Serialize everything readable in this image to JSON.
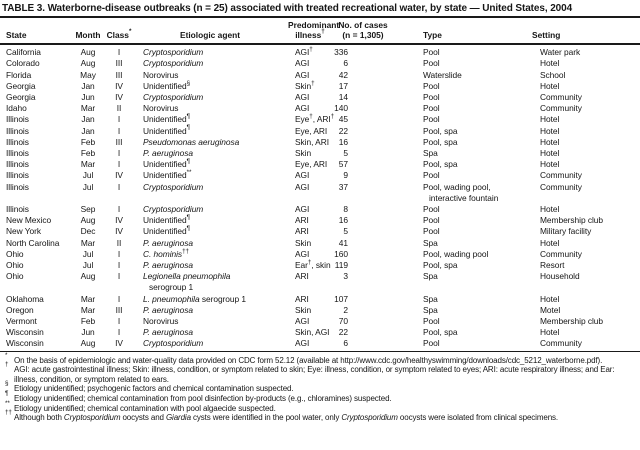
{
  "title": "TABLE 3. Waterborne-disease outbreaks (n = 25) associated with treated recreational water, by state — United States, 2004",
  "columns": {
    "state": "State",
    "month": "Month",
    "class_label": "Class",
    "class_sup": "*",
    "agent": "Etiologic agent",
    "illness_line1": "Predominant",
    "illness_line2": "illness",
    "illness_sup": "†",
    "cases_line1": "No. of cases",
    "cases_line2": "(n = 1,305)",
    "type": "Type",
    "setting": "Setting"
  },
  "rows": [
    {
      "state": "California",
      "month": "Aug",
      "cls": "I",
      "agent": [
        {
          "t": "Cryptosporidium",
          "i": true
        }
      ],
      "illness": [
        {
          "t": "AGI"
        },
        {
          "sup": "†"
        }
      ],
      "cases": "336",
      "type": "Pool",
      "setting": "Water park"
    },
    {
      "state": "Colorado",
      "month": "Aug",
      "cls": "III",
      "agent": [
        {
          "t": "Cryptosporidium",
          "i": true
        }
      ],
      "illness": [
        {
          "t": "AGI"
        }
      ],
      "cases": "6",
      "type": "Pool",
      "setting": "Hotel"
    },
    {
      "state": "Florida",
      "month": "May",
      "cls": "III",
      "agent": [
        {
          "t": "Norovirus"
        }
      ],
      "illness": [
        {
          "t": "AGI"
        }
      ],
      "cases": "42",
      "type": "Waterslide",
      "setting": "School"
    },
    {
      "state": "Georgia",
      "month": "Jan",
      "cls": "IV",
      "agent": [
        {
          "t": "Unidentified"
        },
        {
          "sup": "§"
        }
      ],
      "illness": [
        {
          "t": "Skin"
        },
        {
          "sup": "†"
        }
      ],
      "cases": "17",
      "type": "Pool",
      "setting": "Hotel"
    },
    {
      "state": "Georgia",
      "month": "Jun",
      "cls": "IV",
      "agent": [
        {
          "t": "Cryptosporidium",
          "i": true
        }
      ],
      "illness": [
        {
          "t": "AGI"
        }
      ],
      "cases": "14",
      "type": "Pool",
      "setting": "Community"
    },
    {
      "state": "Idaho",
      "month": "Mar",
      "cls": "II",
      "agent": [
        {
          "t": "Norovirus"
        }
      ],
      "illness": [
        {
          "t": "AGI"
        }
      ],
      "cases": "140",
      "type": "Pool",
      "setting": "Community"
    },
    {
      "state": "Illinois",
      "month": "Jan",
      "cls": "I",
      "agent": [
        {
          "t": "Unidentified"
        },
        {
          "sup": "¶"
        }
      ],
      "illness": [
        {
          "t": "Eye"
        },
        {
          "sup": "†"
        },
        {
          "t": ", ARI"
        },
        {
          "sup": "†"
        }
      ],
      "cases": "45",
      "type": "Pool",
      "setting": "Hotel"
    },
    {
      "state": "Illinois",
      "month": "Jan",
      "cls": "I",
      "agent": [
        {
          "t": "Unidentified"
        },
        {
          "sup": "¶"
        }
      ],
      "illness": [
        {
          "t": "Eye, ARI"
        }
      ],
      "cases": "22",
      "type": "Pool, spa",
      "setting": "Hotel"
    },
    {
      "state": "Illinois",
      "month": "Feb",
      "cls": "III",
      "agent": [
        {
          "t": "Pseudomonas aeruginosa",
          "i": true
        }
      ],
      "illness": [
        {
          "t": "Skin, ARI"
        }
      ],
      "cases": "16",
      "type": "Pool, spa",
      "setting": "Hotel"
    },
    {
      "state": "Illinois",
      "month": "Feb",
      "cls": "I",
      "agent": [
        {
          "t": "P. aeruginosa",
          "i": true
        }
      ],
      "illness": [
        {
          "t": "Skin"
        }
      ],
      "cases": "5",
      "type": "Spa",
      "setting": "Hotel"
    },
    {
      "state": "Illinois",
      "month": "Mar",
      "cls": "I",
      "agent": [
        {
          "t": "Unidentified"
        },
        {
          "sup": "¶"
        }
      ],
      "illness": [
        {
          "t": "Eye, ARI"
        }
      ],
      "cases": "57",
      "type": "Pool, spa",
      "setting": "Hotel"
    },
    {
      "state": "Illinois",
      "month": "Jul",
      "cls": "IV",
      "agent": [
        {
          "t": "Unidentified"
        },
        {
          "sup": "**"
        }
      ],
      "illness": [
        {
          "t": "AGI"
        }
      ],
      "cases": "9",
      "type": "Pool",
      "setting": "Community"
    },
    {
      "state": "Illinois",
      "month": "Jul",
      "cls": "I",
      "agent": [
        {
          "t": "Cryptosporidium",
          "i": true
        }
      ],
      "illness": [
        {
          "t": "AGI"
        }
      ],
      "cases": "37",
      "type": "Pool, wading pool,",
      "type2": "interactive fountain",
      "setting": "Community"
    },
    {
      "state": "Illinois",
      "month": "Sep",
      "cls": "I",
      "agent": [
        {
          "t": "Cryptosporidium",
          "i": true
        }
      ],
      "illness": [
        {
          "t": "AGI"
        }
      ],
      "cases": "8",
      "type": "Pool",
      "setting": "Hotel"
    },
    {
      "state": "New Mexico",
      "month": "Aug",
      "cls": "IV",
      "agent": [
        {
          "t": "Unidentified"
        },
        {
          "sup": "¶"
        }
      ],
      "illness": [
        {
          "t": "ARI"
        }
      ],
      "cases": "16",
      "type": "Pool",
      "setting": "Membership club"
    },
    {
      "state": "New York",
      "month": "Dec",
      "cls": "IV",
      "agent": [
        {
          "t": "Unidentified"
        },
        {
          "sup": "¶"
        }
      ],
      "illness": [
        {
          "t": "ARI"
        }
      ],
      "cases": "5",
      "type": "Pool",
      "setting": "Military facility"
    },
    {
      "state": "North Carolina",
      "month": "Mar",
      "cls": "II",
      "agent": [
        {
          "t": "P. aeruginosa",
          "i": true
        }
      ],
      "illness": [
        {
          "t": "Skin"
        }
      ],
      "cases": "41",
      "type": "Spa",
      "setting": "Hotel"
    },
    {
      "state": "Ohio",
      "month": "Jul",
      "cls": "I",
      "agent": [
        {
          "t": "C. hominis",
          "i": true
        },
        {
          "sup": "††"
        }
      ],
      "illness": [
        {
          "t": "AGI"
        }
      ],
      "cases": "160",
      "type": "Pool, wading pool",
      "setting": "Community"
    },
    {
      "state": "Ohio",
      "month": "Jul",
      "cls": "I",
      "agent": [
        {
          "t": "P. aeruginosa",
          "i": true
        }
      ],
      "illness": [
        {
          "t": "Ear"
        },
        {
          "sup": "†"
        },
        {
          "t": ", skin"
        }
      ],
      "cases": "119",
      "type": "Pool, spa",
      "setting": "Resort"
    },
    {
      "state": "Ohio",
      "month": "Aug",
      "cls": "I",
      "agent": [
        {
          "t": "Legionella pneumophila",
          "i": true
        }
      ],
      "agent2": "serogroup 1",
      "illness": [
        {
          "t": "ARI"
        }
      ],
      "cases": "3",
      "type": "Spa",
      "setting": "Household"
    },
    {
      "state": "Oklahoma",
      "month": "Mar",
      "cls": "I",
      "agent": [
        {
          "t": "L. pneumophila",
          "i": true
        },
        {
          "t": " serogroup 1"
        }
      ],
      "illness": [
        {
          "t": "ARI"
        }
      ],
      "cases": "107",
      "type": "Spa",
      "setting": "Hotel"
    },
    {
      "state": "Oregon",
      "month": "Mar",
      "cls": "III",
      "agent": [
        {
          "t": "P. aeruginosa",
          "i": true
        }
      ],
      "illness": [
        {
          "t": "Skin"
        }
      ],
      "cases": "2",
      "type": "Spa",
      "setting": "Motel"
    },
    {
      "state": "Vermont",
      "month": "Feb",
      "cls": "I",
      "agent": [
        {
          "t": "Norovirus"
        }
      ],
      "illness": [
        {
          "t": "AGI"
        }
      ],
      "cases": "70",
      "type": "Pool",
      "setting": "Membership club"
    },
    {
      "state": "Wisconsin",
      "month": "Jun",
      "cls": "I",
      "agent": [
        {
          "t": "P. aeruginosa",
          "i": true
        }
      ],
      "illness": [
        {
          "t": "Skin, AGI"
        }
      ],
      "cases": "22",
      "type": "Pool, spa",
      "setting": "Hotel"
    },
    {
      "state": "Wisconsin",
      "month": "Aug",
      "cls": "IV",
      "agent": [
        {
          "t": "Cryptosporidium",
          "i": true
        }
      ],
      "illness": [
        {
          "t": "AGI"
        }
      ],
      "cases": "6",
      "type": "Pool",
      "setting": "Community"
    }
  ],
  "footnotes": [
    {
      "marker": "*",
      "segs": [
        {
          "t": "On the basis of epidemiologic and water-quality data provided on CDC form 52.12 (available at http://www.cdc.gov/healthyswimming/downloads/cdc_5212_waterborne.pdf)."
        }
      ]
    },
    {
      "marker": "†",
      "segs": [
        {
          "t": "AGI: acute gastrointestinal illness; Skin: illness, condition, or symptom related to skin; Eye: illness, condition, or symptom related to eyes; ARI: acute respiratory illness; and Ear: illness, condition, or symptom related to ears."
        }
      ]
    },
    {
      "marker": "§",
      "segs": [
        {
          "t": "Etiology unidentified; psychogenic factors and chemical contamination suspected."
        }
      ]
    },
    {
      "marker": "¶",
      "segs": [
        {
          "t": "Etiology unidentified; chemical contamination from pool disinfection by-products (e.g., chloramines) suspected."
        }
      ]
    },
    {
      "marker": "**",
      "segs": [
        {
          "t": "Etiology unidentified; chemical contamination with pool algaecide suspected."
        }
      ]
    },
    {
      "marker": "††",
      "segs": [
        {
          "t": "Although both "
        },
        {
          "t": "Cryptosporidium",
          "i": true
        },
        {
          "t": " oocysts and "
        },
        {
          "t": "Giardia",
          "i": true
        },
        {
          "t": " cysts were identified in the pool water, only "
        },
        {
          "t": "Cryptosporidium",
          "i": true
        },
        {
          "t": " oocysts were isolated from clinical specimens."
        }
      ]
    }
  ]
}
